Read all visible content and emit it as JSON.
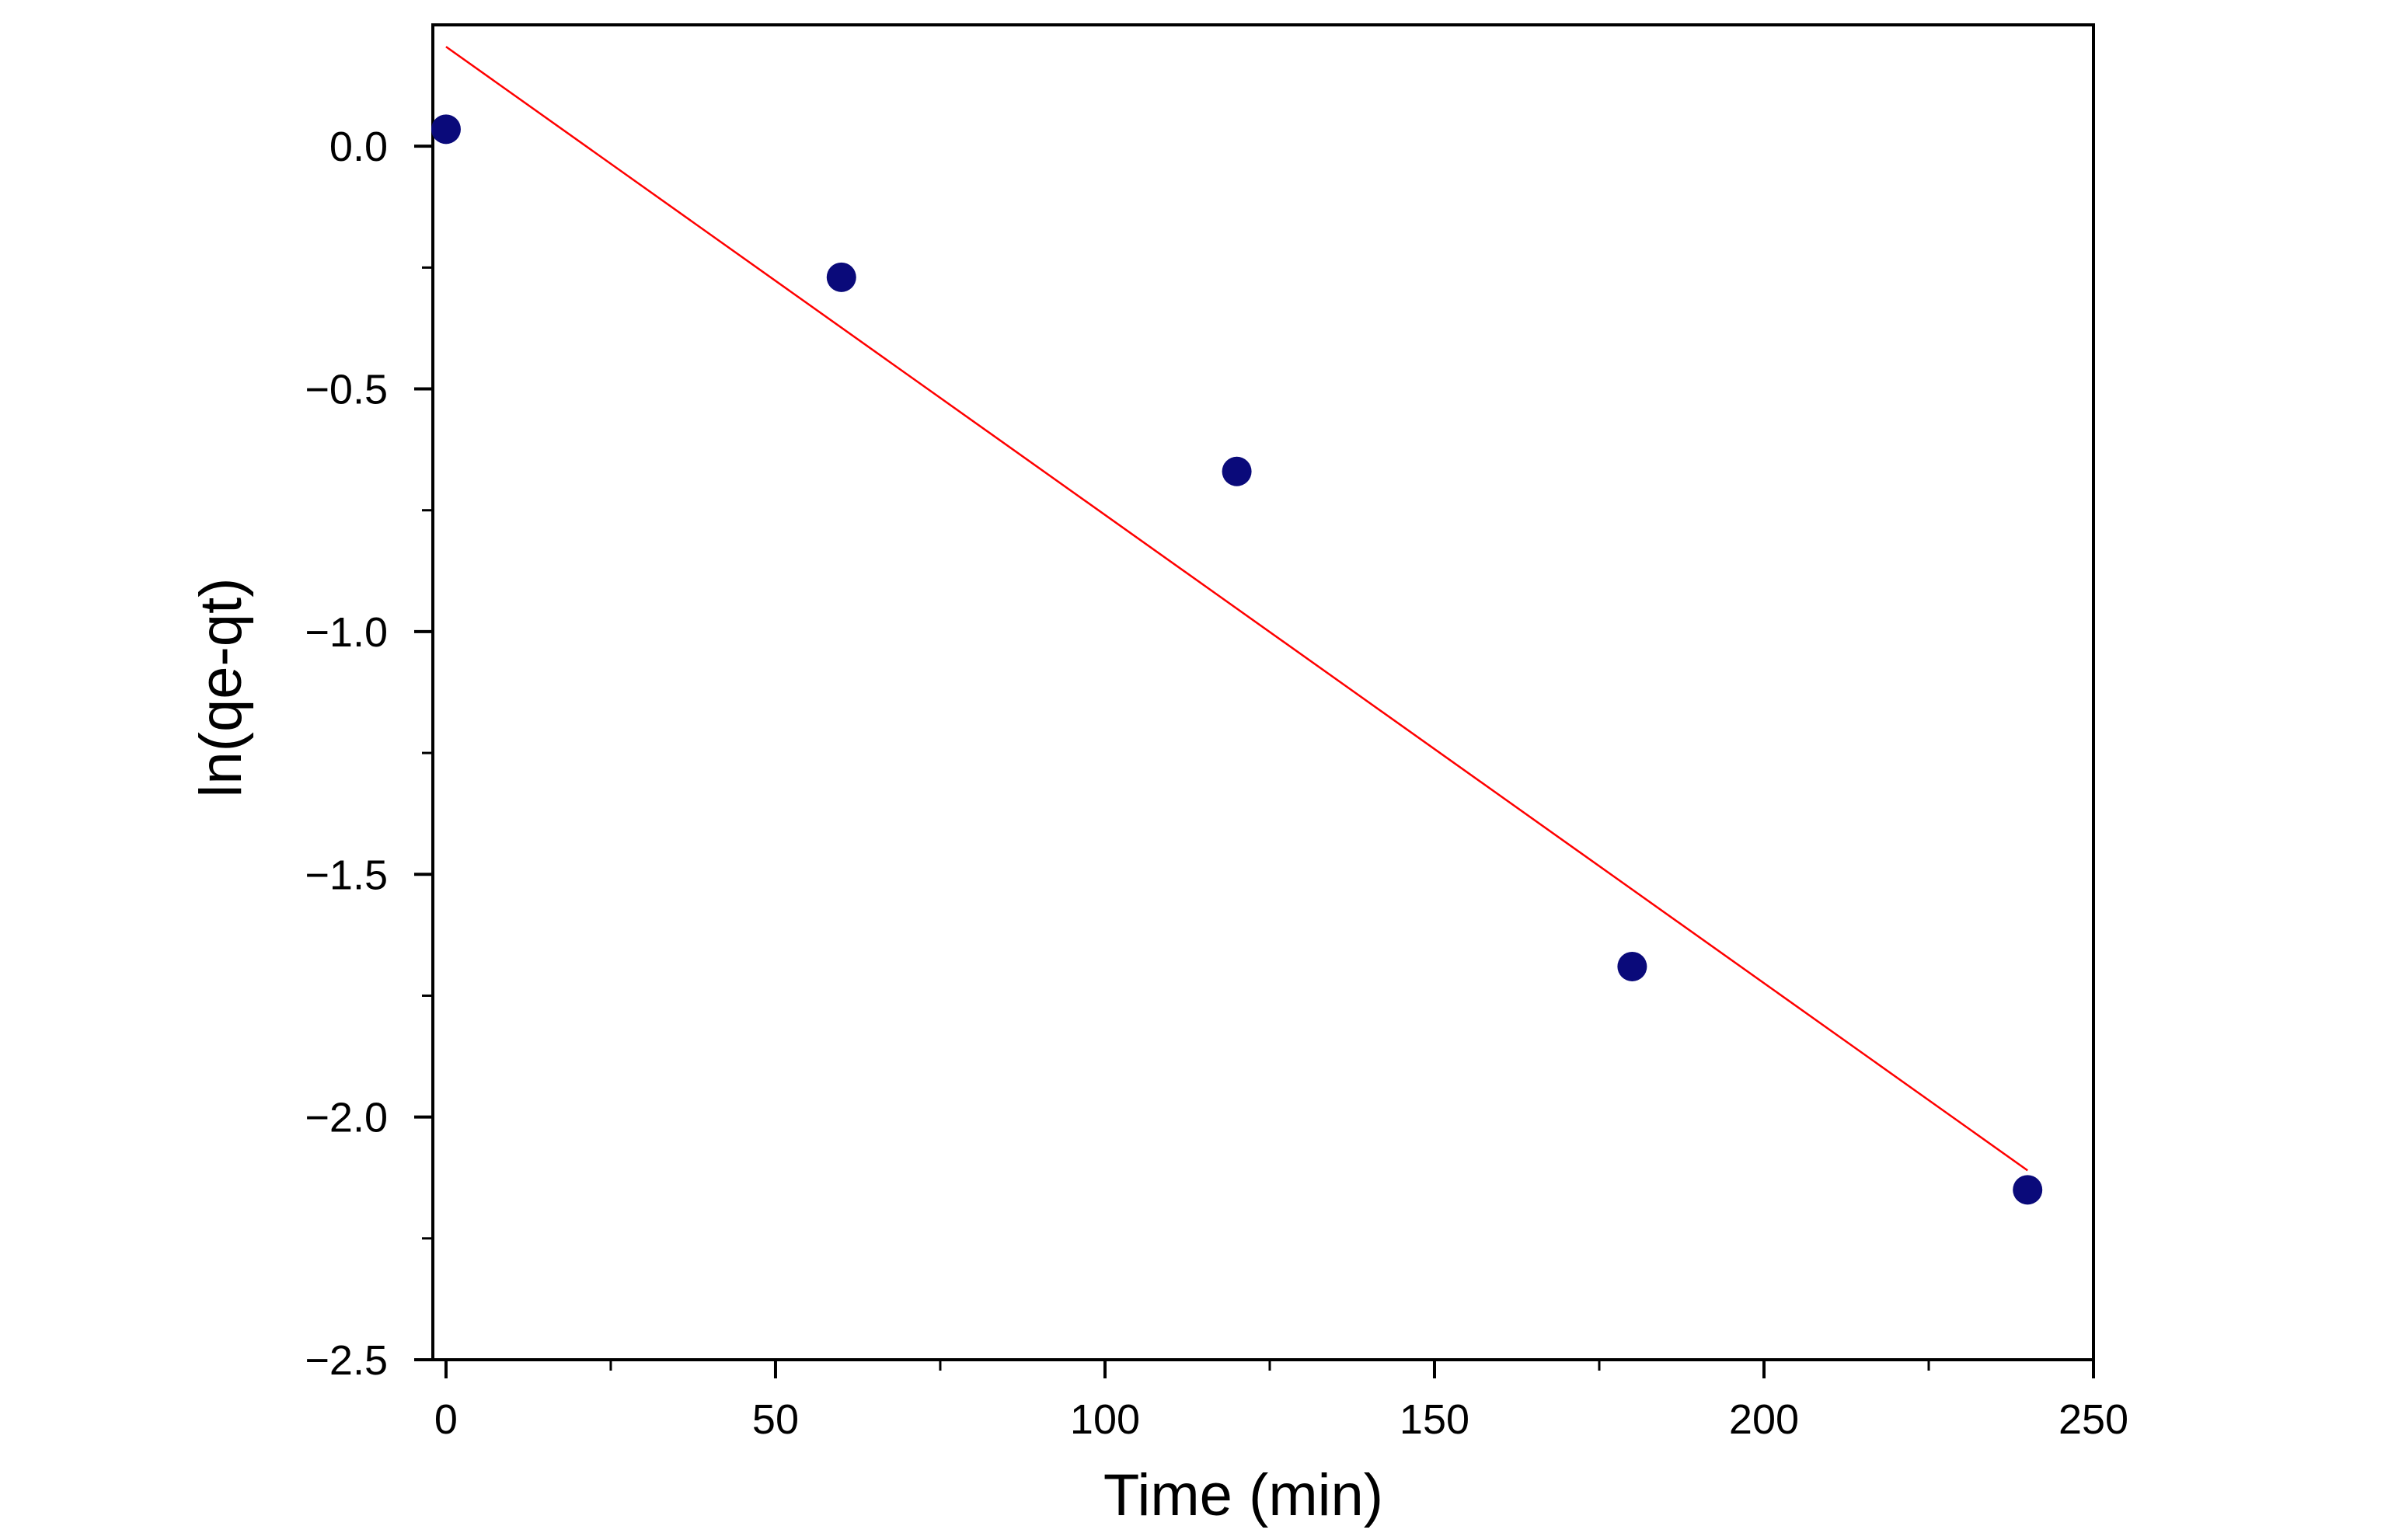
{
  "chart_data": {
    "type": "scatter",
    "title": "",
    "xlabel": "Time (min)",
    "ylabel": "ln(qe-qt)",
    "xlim": [
      -2,
      250
    ],
    "ylim": [
      -2.5,
      0.25
    ],
    "x_ticks": [
      0,
      50,
      100,
      150,
      200,
      250
    ],
    "y_ticks": [
      0.0,
      -0.5,
      -1.0,
      -1.5,
      -2.0,
      -2.5
    ],
    "x_tick_labels": [
      "0",
      "50",
      "100",
      "150",
      "200",
      "250"
    ],
    "y_tick_labels": [
      "0.0",
      "−0.5",
      "−1.0",
      "−1.5",
      "−2.0",
      "−2.5"
    ],
    "grid": false,
    "legend": "none",
    "series": [
      {
        "x": [
          0,
          60,
          120,
          180,
          240
        ],
        "y": [
          0.035,
          -0.27,
          -0.67,
          -1.69,
          -2.15
        ],
        "color": "#0a0a7a",
        "marker": "circle"
      }
    ],
    "fit_line": {
      "x": [
        0,
        240
      ],
      "y": [
        0.205,
        -2.11
      ],
      "color": "#ff0000"
    }
  }
}
